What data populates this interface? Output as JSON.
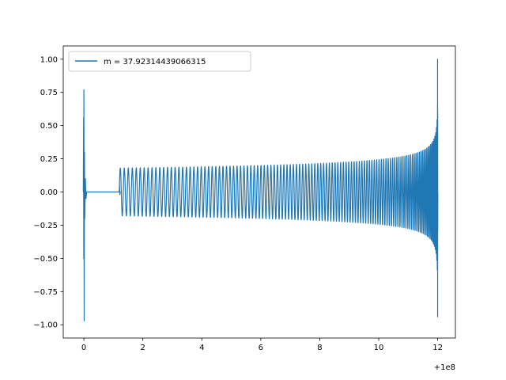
{
  "chart_data": {
    "type": "line",
    "title": "",
    "xlabel": "",
    "ylabel": "",
    "x_offset_label": "+1e8",
    "xlim": [
      -0.7,
      12.6
    ],
    "ylim": [
      -1.1,
      1.1
    ],
    "x_ticks": [
      0,
      2,
      4,
      6,
      8,
      10,
      12
    ],
    "x_tick_labels": [
      "0",
      "2",
      "4",
      "6",
      "8",
      "10",
      "12"
    ],
    "y_ticks": [
      1.0,
      0.75,
      0.5,
      0.25,
      0.0,
      -0.25,
      -0.5,
      -0.75,
      -1.0
    ],
    "y_tick_labels": [
      "1.00",
      "0.75",
      "0.50",
      "0.25",
      "0.00",
      "−0.25",
      "−0.50",
      "−0.75",
      "−1.00"
    ],
    "grid": false,
    "legend_position": "upper-left",
    "series": [
      {
        "name": "m = 37.92314439066315",
        "color": "#1f77b4",
        "description_points": {
          "initial_spike": {
            "x": 0.0,
            "y_max": 0.77,
            "y_min": -0.97
          },
          "flat_segment": {
            "x_start": 0.05,
            "x_end": 1.2,
            "y": 0.0
          },
          "oscillation_start": {
            "x": 1.2,
            "amplitude": 0.18
          },
          "oscillation_mid": {
            "x": 6.0,
            "amplitude": 0.2
          },
          "oscillation_late": {
            "x": 10.0,
            "amplitude": 0.26
          },
          "final_spike": {
            "x": 12.0,
            "y_max": 1.0,
            "y_min": -0.94
          }
        }
      }
    ]
  }
}
